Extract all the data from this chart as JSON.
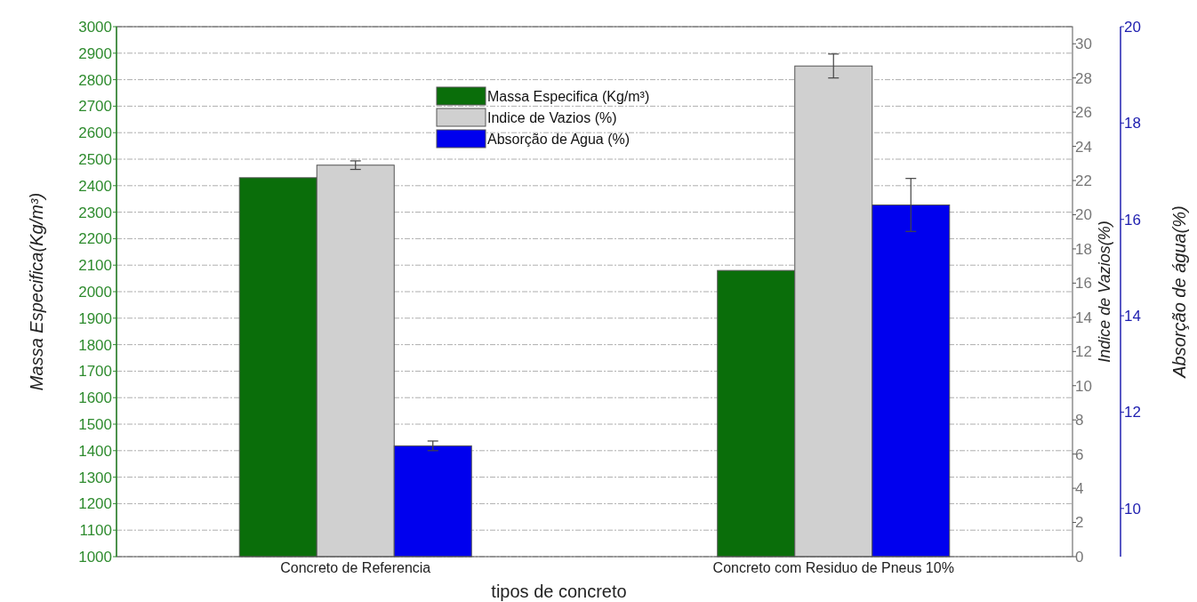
{
  "chart_data": {
    "type": "bar",
    "categories": [
      "Concreto de Referencia",
      "Concreto com Residuo de Pneus 10%"
    ],
    "xlabel": "tipos de concreto",
    "ylabel": "Massa Especifica(Kg/m³)",
    "y2label": "Indice de Vazios(%)",
    "y3label": "Absorção de água(%)",
    "series": [
      {
        "name": "Massa Especifica (Kg/m³)",
        "color": "#0a6e0a",
        "values": [
          2430,
          2080
        ]
      },
      {
        "name": "Indice de Vazios (%)",
        "color": "#d0d0d0",
        "values": [
          22.9,
          28.7
        ],
        "errors": [
          0.25,
          0.7
        ],
        "axis": "y2"
      },
      {
        "name": "Absorção de Agua (%)",
        "color": "#0000ee",
        "values": [
          11.3,
          16.3
        ],
        "errors": [
          0.1,
          0.55
        ],
        "axis": "y3"
      }
    ],
    "ylim": [
      1000,
      3000
    ],
    "yticks": [
      1000,
      1100,
      1200,
      1300,
      1400,
      1500,
      1600,
      1700,
      1800,
      1900,
      2000,
      2100,
      2200,
      2300,
      2400,
      2500,
      2600,
      2700,
      2800,
      2900,
      3000
    ],
    "y2lim": [
      0,
      31
    ],
    "y2ticks": [
      0,
      2,
      4,
      6,
      8,
      10,
      12,
      14,
      16,
      18,
      20,
      22,
      24,
      26,
      28,
      30
    ],
    "y3lim": [
      9,
      20
    ],
    "y3ticks": [
      10,
      12,
      14,
      16,
      18,
      20
    ],
    "grid": "y",
    "legend": "top"
  }
}
